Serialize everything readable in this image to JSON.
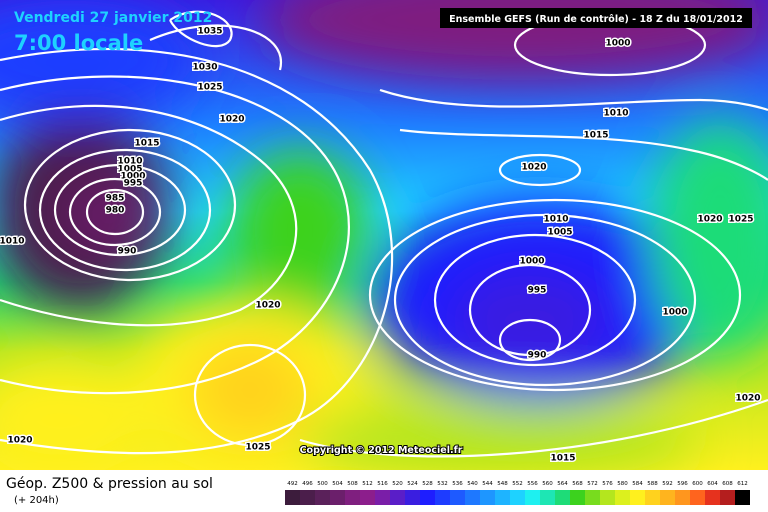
{
  "header": {
    "date": "Vendredi 27 janvier 2012",
    "time": "7:00 locale",
    "run": "Ensemble GEFS (Run de contrôle)  -  18 Z du 18/01/2012"
  },
  "copyright": "Copyright © 2012 Meteociel.fr",
  "footer": {
    "title": "Géop. Z500 & pression au sol",
    "range": "(+ 204h)"
  },
  "isobar_labels": [
    1035,
    1030,
    1025,
    1020,
    1015,
    1010,
    1005,
    1000,
    995,
    985,
    980,
    990,
    1010,
    1020,
    1025,
    1020,
    1000,
    1010,
    1015,
    1020,
    1010,
    1005,
    1000,
    995,
    990,
    1000,
    1020,
    1025,
    1020,
    1015
  ],
  "legend": {
    "labels": [
      492,
      496,
      500,
      504,
      508,
      512,
      516,
      520,
      524,
      528,
      532,
      536,
      540,
      544,
      548,
      552,
      556,
      560,
      564,
      568,
      572,
      576,
      580,
      584,
      588,
      592,
      596,
      600,
      604,
      608,
      612
    ],
    "colors": [
      "#3c1c3c",
      "#4b1e4b",
      "#5a215a",
      "#6b1f6b",
      "#7f1f7f",
      "#8c1e8c",
      "#7a1ea8",
      "#5a1ec8",
      "#3a1ee0",
      "#1e1eff",
      "#1e3cff",
      "#1e5aff",
      "#1e78ff",
      "#1e96ff",
      "#1eb4ff",
      "#1ed2ff",
      "#1ef0f0",
      "#1ee6b4",
      "#1edc78",
      "#3cd21e",
      "#78dc1e",
      "#b4e61e",
      "#dcf01e",
      "#fff01e",
      "#ffd21e",
      "#ffb41e",
      "#ff961e",
      "#ff641e",
      "#e6321e",
      "#b41e1e",
      "#000000"
    ]
  }
}
